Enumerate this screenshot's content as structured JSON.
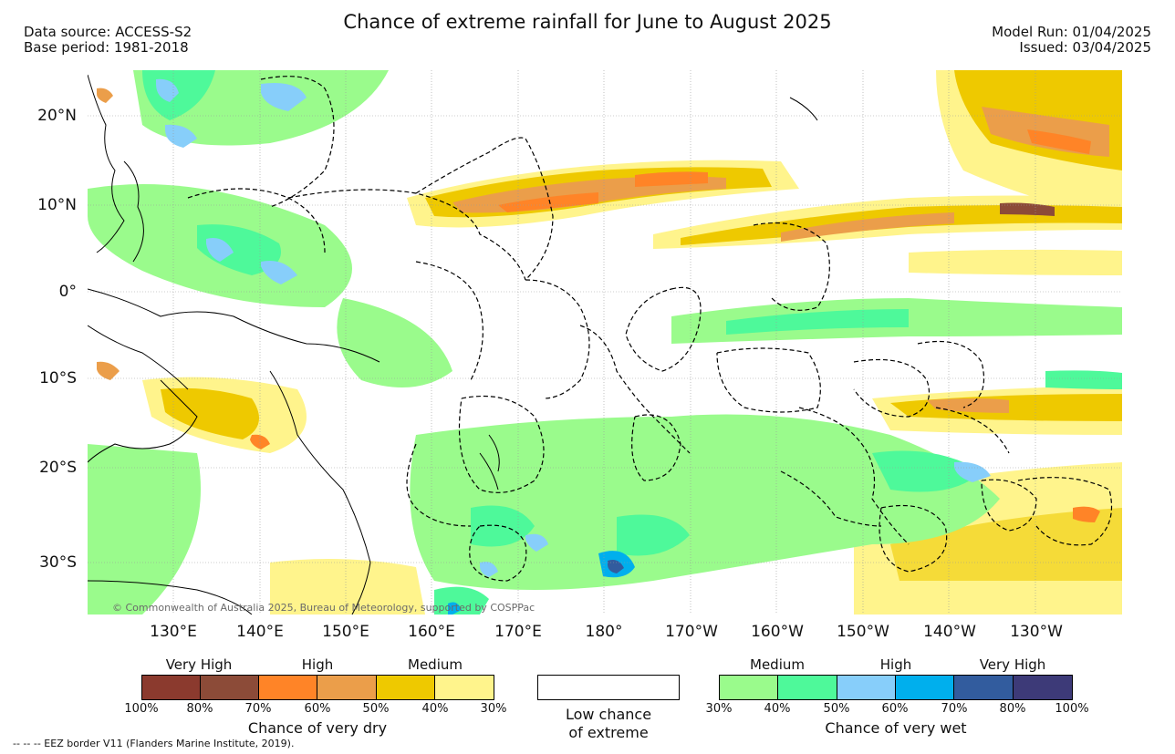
{
  "header": {
    "title": "Chance of extreme rainfall for June to August 2025",
    "data_source": "Data source: ACCESS-S2",
    "base_period": "Base period: 1981-2018",
    "model_run": "Model Run: 01/04/2025",
    "issued": "Issued: 03/04/2025"
  },
  "map": {
    "lat_labels": [
      "20°N",
      "10°N",
      "0°",
      "10°S",
      "20°S",
      "30°S"
    ],
    "lon_labels": [
      "130°E",
      "140°E",
      "150°E",
      "160°E",
      "170°E",
      "180°",
      "170°W",
      "160°W",
      "150°W",
      "140°W",
      "130°W"
    ],
    "copyright": "© Commonwealth of Australia 2025, Bureau of Meteorology, supported by COSPPac"
  },
  "legend": {
    "dry": {
      "categories": [
        "Very High",
        "High",
        "Medium"
      ],
      "ticks": [
        "100%",
        "80%",
        "70%",
        "60%",
        "50%",
        "40%",
        "30%"
      ],
      "colors": [
        "#8b3a2e",
        "#8c4b38",
        "#ff8427",
        "#eb9e4a",
        "#eec900",
        "#fff48c"
      ],
      "caption": "Chance of very dry"
    },
    "low": {
      "caption_line1": "Low chance",
      "caption_line2": "of extreme",
      "color": "#ffffff"
    },
    "wet": {
      "categories": [
        "Medium",
        "High",
        "Very High"
      ],
      "ticks": [
        "30%",
        "40%",
        "50%",
        "60%",
        "70%",
        "80%",
        "100%"
      ],
      "colors": [
        "#9afb8c",
        "#4ef99a",
        "#87cefa",
        "#00afed",
        "#325c9e",
        "#3d3a78"
      ],
      "caption": "Chance of very wet"
    }
  },
  "footer": {
    "eez_note": "--  --  -- EEZ border V11 (Flanders Marine Institute, 2019)."
  }
}
